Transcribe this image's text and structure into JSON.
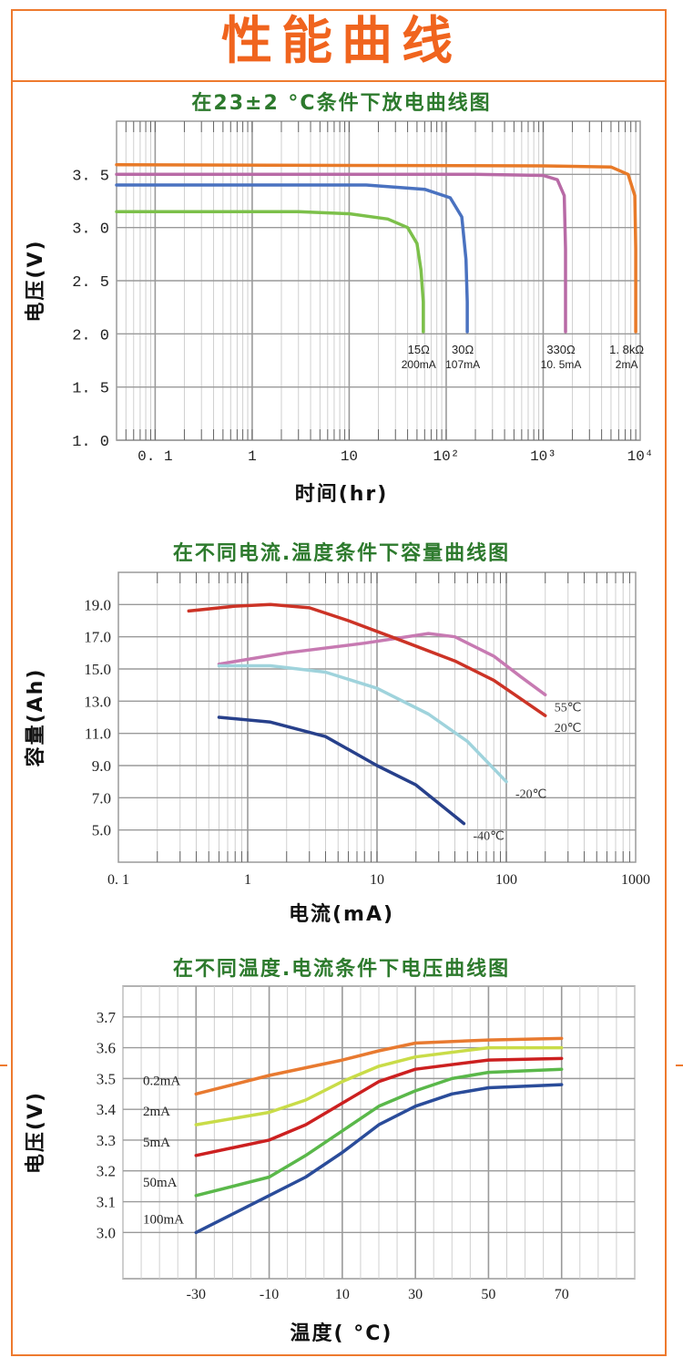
{
  "page": {
    "title": "性能曲线"
  },
  "colors": {
    "frame": "#ee7a2e",
    "title": "#f0641e",
    "chart_title": "#2d7a2d",
    "grid_major": "#9a9a9a",
    "grid_minor": "#d0d0d0"
  },
  "chart_data": [
    {
      "type": "line",
      "title": "在23±2 °C条件下放电曲线图",
      "xlabel": "时间(hr)",
      "ylabel": "电压(V)",
      "x_scale": "log",
      "xlim": [
        0.04,
        10000
      ],
      "ylim": [
        1.0,
        4.0
      ],
      "xticks": [
        {
          "v": 0.1,
          "label": "0. 1"
        },
        {
          "v": 1,
          "label": "1"
        },
        {
          "v": 10,
          "label": "10"
        },
        {
          "v": 100,
          "label": "10²"
        },
        {
          "v": 1000,
          "label": "10³"
        },
        {
          "v": 10000,
          "label": "10⁴"
        }
      ],
      "yticks": [
        {
          "v": 1.0,
          "label": "1. 0"
        },
        {
          "v": 1.5,
          "label": "1. 5"
        },
        {
          "v": 2.0,
          "label": "2. 0"
        },
        {
          "v": 2.5,
          "label": "2. 5"
        },
        {
          "v": 3.0,
          "label": "3. 0"
        },
        {
          "v": 3.5,
          "label": "3. 5"
        }
      ],
      "series": [
        {
          "name": "15Ω",
          "sublabel": "200mA",
          "color": "#7cc04a",
          "points": [
            [
              0.04,
              3.15
            ],
            [
              3,
              3.15
            ],
            [
              10,
              3.13
            ],
            [
              25,
              3.08
            ],
            [
              40,
              3.0
            ],
            [
              50,
              2.85
            ],
            [
              55,
              2.6
            ],
            [
              58,
              2.3
            ],
            [
              58,
              2.02
            ]
          ]
        },
        {
          "name": "30Ω",
          "sublabel": "107mA",
          "color": "#4a72c0",
          "points": [
            [
              0.04,
              3.4
            ],
            [
              15,
              3.4
            ],
            [
              60,
              3.36
            ],
            [
              110,
              3.28
            ],
            [
              145,
              3.1
            ],
            [
              160,
              2.7
            ],
            [
              165,
              2.3
            ],
            [
              165,
              2.02
            ]
          ]
        },
        {
          "name": "330Ω",
          "sublabel": "10. 5mA",
          "color": "#b86aa6",
          "points": [
            [
              0.04,
              3.5
            ],
            [
              200,
              3.5
            ],
            [
              1000,
              3.49
            ],
            [
              1400,
              3.45
            ],
            [
              1650,
              3.3
            ],
            [
              1700,
              2.8
            ],
            [
              1700,
              2.3
            ],
            [
              1700,
              2.02
            ]
          ]
        },
        {
          "name": "1. 8kΩ",
          "sublabel": "2mA",
          "color": "#e87a28",
          "points": [
            [
              0.04,
              3.59
            ],
            [
              1000,
              3.58
            ],
            [
              5000,
              3.57
            ],
            [
              7500,
              3.5
            ],
            [
              8800,
              3.3
            ],
            [
              9000,
              2.8
            ],
            [
              9000,
              2.3
            ],
            [
              9000,
              2.02
            ]
          ]
        }
      ]
    },
    {
      "type": "line",
      "title": "在不同电流.温度条件下容量曲线图",
      "xlabel": "电流(mA)",
      "ylabel": "容量(Ah)",
      "x_scale": "log",
      "xlim": [
        0.1,
        1000
      ],
      "ylim": [
        3.0,
        21.0
      ],
      "xticks": [
        {
          "v": 0.1,
          "label": "0. 1"
        },
        {
          "v": 1,
          "label": "1"
        },
        {
          "v": 10,
          "label": "10"
        },
        {
          "v": 100,
          "label": "100"
        },
        {
          "v": 1000,
          "label": "1000"
        }
      ],
      "yticks": [
        {
          "v": 5.0,
          "label": "5.0"
        },
        {
          "v": 7.0,
          "label": "7.0"
        },
        {
          "v": 9.0,
          "label": "9.0"
        },
        {
          "v": 11.0,
          "label": "11.0"
        },
        {
          "v": 13.0,
          "label": "13.0"
        },
        {
          "v": 15.0,
          "label": "15.0"
        },
        {
          "v": 17.0,
          "label": "17.0"
        },
        {
          "v": 19.0,
          "label": "19.0"
        }
      ],
      "series": [
        {
          "name": "55℃",
          "color": "#c77ab2",
          "points": [
            [
              0.6,
              15.3
            ],
            [
              2,
              16.0
            ],
            [
              8,
              16.6
            ],
            [
              25,
              17.2
            ],
            [
              40,
              17.0
            ],
            [
              80,
              15.8
            ],
            [
              130,
              14.5
            ],
            [
              200,
              13.4
            ]
          ]
        },
        {
          "name": "20℃",
          "color": "#cc3326",
          "points": [
            [
              0.35,
              18.6
            ],
            [
              0.8,
              18.9
            ],
            [
              1.5,
              19.0
            ],
            [
              3,
              18.8
            ],
            [
              6,
              18.0
            ],
            [
              15,
              16.8
            ],
            [
              40,
              15.5
            ],
            [
              80,
              14.3
            ],
            [
              200,
              12.1
            ]
          ]
        },
        {
          "name": "-20℃",
          "color": "#9fd3dc",
          "points": [
            [
              0.6,
              15.2
            ],
            [
              1.5,
              15.2
            ],
            [
              4,
              14.8
            ],
            [
              10,
              13.8
            ],
            [
              25,
              12.2
            ],
            [
              50,
              10.5
            ],
            [
              100,
              8.0
            ]
          ]
        },
        {
          "name": "-40℃",
          "color": "#27408b",
          "points": [
            [
              0.6,
              12.0
            ],
            [
              1.5,
              11.7
            ],
            [
              4,
              10.8
            ],
            [
              10,
              9.0
            ],
            [
              20,
              7.8
            ],
            [
              47,
              5.4
            ]
          ]
        }
      ]
    },
    {
      "type": "line",
      "title": "在不同温度.电流条件下电压曲线图",
      "xlabel": "温度( °C)",
      "ylabel": "电压(V)",
      "x_scale": "linear",
      "xlim": [
        -50,
        90
      ],
      "ylim": [
        2.85,
        3.8
      ],
      "xticks": [
        {
          "v": -30,
          "label": "-30"
        },
        {
          "v": -10,
          "label": "-10"
        },
        {
          "v": 10,
          "label": "10"
        },
        {
          "v": 30,
          "label": "30"
        },
        {
          "v": 50,
          "label": "50"
        },
        {
          "v": 70,
          "label": "70"
        }
      ],
      "yticks": [
        {
          "v": 3.0,
          "label": "3.0"
        },
        {
          "v": 3.1,
          "label": "3.1"
        },
        {
          "v": 3.2,
          "label": "3.2"
        },
        {
          "v": 3.3,
          "label": "3.3"
        },
        {
          "v": 3.4,
          "label": "3.4"
        },
        {
          "v": 3.5,
          "label": "3.5"
        },
        {
          "v": 3.6,
          "label": "3.6"
        },
        {
          "v": 3.7,
          "label": "3.7"
        }
      ],
      "series": [
        {
          "name": "0.2mA",
          "color": "#e87a30",
          "points": [
            [
              -30,
              3.45
            ],
            [
              -10,
              3.51
            ],
            [
              10,
              3.56
            ],
            [
              20,
              3.59
            ],
            [
              30,
              3.615
            ],
            [
              50,
              3.625
            ],
            [
              70,
              3.63
            ]
          ]
        },
        {
          "name": "2mA",
          "color": "#c9dc48",
          "points": [
            [
              -30,
              3.35
            ],
            [
              -10,
              3.39
            ],
            [
              0,
              3.43
            ],
            [
              10,
              3.49
            ],
            [
              20,
              3.54
            ],
            [
              30,
              3.57
            ],
            [
              50,
              3.6
            ],
            [
              70,
              3.6
            ]
          ]
        },
        {
          "name": "5mA",
          "color": "#cc2020",
          "points": [
            [
              -30,
              3.25
            ],
            [
              -10,
              3.3
            ],
            [
              0,
              3.35
            ],
            [
              10,
              3.42
            ],
            [
              20,
              3.49
            ],
            [
              30,
              3.53
            ],
            [
              50,
              3.56
            ],
            [
              70,
              3.565
            ]
          ]
        },
        {
          "name": "50mA",
          "color": "#5ab84a",
          "points": [
            [
              -30,
              3.12
            ],
            [
              -10,
              3.18
            ],
            [
              0,
              3.25
            ],
            [
              10,
              3.33
            ],
            [
              20,
              3.41
            ],
            [
              30,
              3.46
            ],
            [
              40,
              3.5
            ],
            [
              50,
              3.52
            ],
            [
              70,
              3.53
            ]
          ]
        },
        {
          "name": "100mA",
          "color": "#2a4c9a",
          "points": [
            [
              -30,
              3.0
            ],
            [
              -10,
              3.12
            ],
            [
              0,
              3.18
            ],
            [
              10,
              3.26
            ],
            [
              20,
              3.35
            ],
            [
              30,
              3.41
            ],
            [
              40,
              3.45
            ],
            [
              50,
              3.47
            ],
            [
              70,
              3.48
            ]
          ]
        }
      ]
    }
  ]
}
